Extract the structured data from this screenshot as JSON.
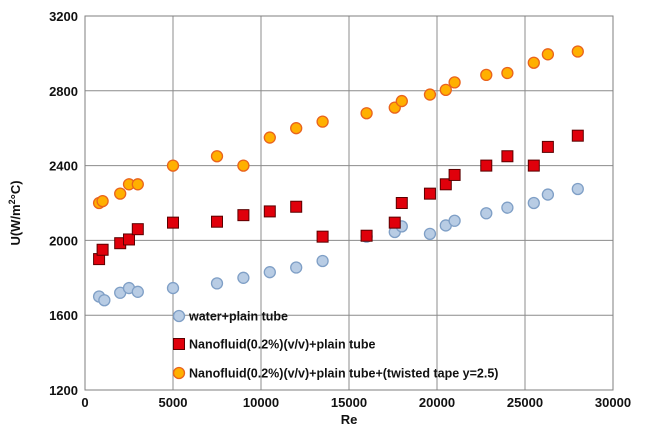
{
  "chart_data": {
    "type": "scatter",
    "xlabel": "Re",
    "ylabel": "U(W/m",
    "ylabel_sup": "2",
    "ylabel_suffix": "°C)",
    "xlim": [
      0,
      30000
    ],
    "ylim": [
      1200,
      3200
    ],
    "xticks": [
      0,
      5000,
      10000,
      15000,
      20000,
      25000,
      30000
    ],
    "yticks": [
      1200,
      1600,
      2000,
      2400,
      2800,
      3200
    ],
    "grid": "vertical and horizontal major gridlines",
    "legend_position": "bottom-center inside plot",
    "series": [
      {
        "name": "water+plain tube",
        "marker": "circle",
        "fill": "#b8cce4",
        "stroke": "#7f9fc6",
        "points": [
          [
            800,
            1700
          ],
          [
            1100,
            1680
          ],
          [
            2000,
            1720
          ],
          [
            2500,
            1745
          ],
          [
            3000,
            1725
          ],
          [
            5000,
            1745
          ],
          [
            7500,
            1770
          ],
          [
            9000,
            1800
          ],
          [
            10500,
            1830
          ],
          [
            12000,
            1855
          ],
          [
            13500,
            1890
          ],
          [
            16000,
            2020
          ],
          [
            17600,
            2045
          ],
          [
            18000,
            2075
          ],
          [
            19600,
            2035
          ],
          [
            20500,
            2080
          ],
          [
            21000,
            2105
          ],
          [
            22800,
            2145
          ],
          [
            24000,
            2175
          ],
          [
            25500,
            2200
          ],
          [
            26300,
            2245
          ],
          [
            28000,
            2275
          ]
        ]
      },
      {
        "name": "Nanofluid(0.2%)(v/v)+plain  tube",
        "marker": "square",
        "fill": "#e0000b",
        "stroke": "#5a0000",
        "points": [
          [
            800,
            1900
          ],
          [
            1000,
            1950
          ],
          [
            2000,
            1985
          ],
          [
            2500,
            2005
          ],
          [
            3000,
            2060
          ],
          [
            5000,
            2095
          ],
          [
            7500,
            2100
          ],
          [
            9000,
            2135
          ],
          [
            10500,
            2155
          ],
          [
            12000,
            2180
          ],
          [
            13500,
            2020
          ],
          [
            16000,
            2025
          ],
          [
            17600,
            2095
          ],
          [
            18000,
            2200
          ],
          [
            19600,
            2250
          ],
          [
            20500,
            2300
          ],
          [
            21000,
            2350
          ],
          [
            22800,
            2400
          ],
          [
            24000,
            2450
          ],
          [
            25500,
            2400
          ],
          [
            26300,
            2500
          ],
          [
            28000,
            2560
          ]
        ]
      },
      {
        "name": "Nanofluid(0.2%)(v/v)+plain  tube+(twisted tape y=2.5)",
        "marker": "circle",
        "fill": "#ffb000",
        "stroke": "#e9631d",
        "points": [
          [
            800,
            2200
          ],
          [
            1000,
            2210
          ],
          [
            2000,
            2250
          ],
          [
            2500,
            2300
          ],
          [
            3000,
            2300
          ],
          [
            5000,
            2400
          ],
          [
            7500,
            2450
          ],
          [
            9000,
            2400
          ],
          [
            10500,
            2550
          ],
          [
            12000,
            2600
          ],
          [
            13500,
            2635
          ],
          [
            16000,
            2680
          ],
          [
            17600,
            2710
          ],
          [
            18000,
            2745
          ],
          [
            19600,
            2780
          ],
          [
            20500,
            2805
          ],
          [
            21000,
            2845
          ],
          [
            22800,
            2885
          ],
          [
            24000,
            2895
          ],
          [
            25500,
            2950
          ],
          [
            26300,
            2995
          ],
          [
            28000,
            3010
          ]
        ]
      }
    ]
  }
}
